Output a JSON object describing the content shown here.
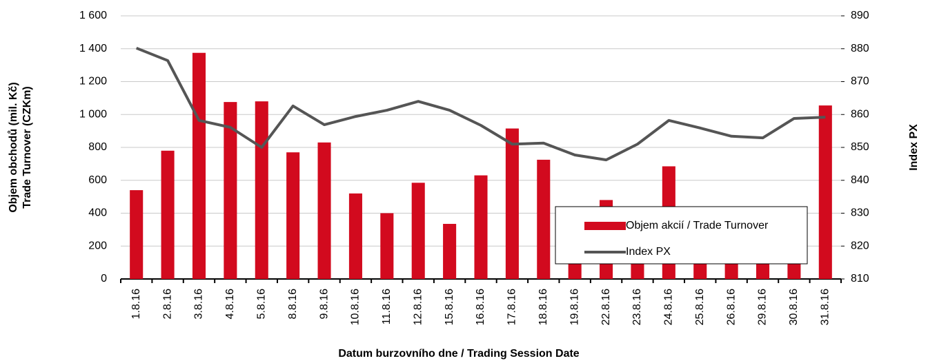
{
  "chart_data": {
    "type": "bar-line",
    "x_label": "Datum burzovního dne / Trading Session Date",
    "y_label": [
      "Objem obchodů (mil. Kč)",
      "Trade Turnover (CZKm)"
    ],
    "y2_label": "Index PX",
    "categories": [
      "1.8.16",
      "2.8.16",
      "3.8.16",
      "4.8.16",
      "5.8.16",
      "8.8.16",
      "9.8.16",
      "10.8.16",
      "11.8.16",
      "12.8.16",
      "15.8.16",
      "16.8.16",
      "17.8.16",
      "18.8.16",
      "19.8.16",
      "22.8.16",
      "23.8.16",
      "24.8.16",
      "25.8.16",
      "26.8.16",
      "29.8.16",
      "30.8.16",
      "31.8.16"
    ],
    "series": [
      {
        "name": "Objem akcií / Trade Turnover",
        "type": "bar",
        "color": "#d20a1e",
        "values": [
          540,
          780,
          1375,
          1076,
          1080,
          770,
          830,
          520,
          400,
          585,
          335,
          630,
          915,
          725,
          380,
          480,
          405,
          685,
          415,
          300,
          250,
          350,
          1055
        ]
      },
      {
        "name": "Index PX",
        "type": "line",
        "axis": "y2",
        "color": "#555555",
        "values": [
          880.2,
          876.4,
          858.2,
          856.1,
          850,
          862.6,
          856.9,
          859.4,
          861.3,
          864,
          861.3,
          856.7,
          851,
          851.3,
          847.7,
          846.2,
          851,
          858.2,
          855.9,
          853.4,
          852.9,
          858.8,
          859.2
        ]
      }
    ],
    "ylim": [
      0,
      1600
    ],
    "yticks": [
      0,
      200,
      400,
      600,
      800,
      {
        "value": 1000,
        "label": "1 000"
      },
      {
        "value": 1200,
        "label": "1 200"
      },
      {
        "value": 1400,
        "label": "1 400"
      },
      {
        "value": 1600,
        "label": "1 600"
      }
    ],
    "y2lim": [
      810,
      890
    ],
    "y2ticks": [
      810,
      820,
      830,
      840,
      850,
      860,
      870,
      880,
      890
    ],
    "grid": true,
    "legend": "lower right"
  }
}
